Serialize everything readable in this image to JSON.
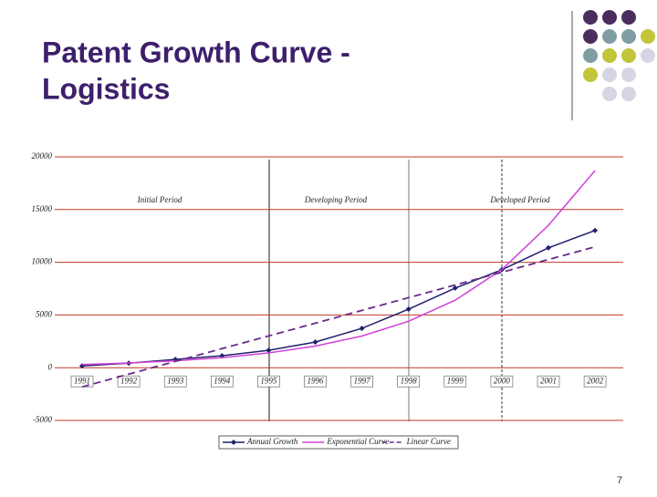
{
  "title_lines": [
    "Patent Growth Curve  -",
    "Logistics"
  ],
  "page_number": "7",
  "chart_data": {
    "type": "line",
    "categories": [
      "1991",
      "1992",
      "1993",
      "1994",
      "1995",
      "1996",
      "1997",
      "1998",
      "1999",
      "2000",
      "2001",
      "2002"
    ],
    "series": [
      {
        "name": "Annual Growth",
        "color": "#1f1f6e",
        "style": "solid",
        "marker": "diamond",
        "values": [
          170,
          430,
          780,
          1130,
          1650,
          2430,
          3730,
          5550,
          7550,
          9290,
          11370,
          13020
        ]
      },
      {
        "name": "Exponential Curve",
        "color": "#d040d8",
        "style": "solid",
        "values": [
          300,
          450,
          650,
          950,
          1400,
          2050,
          3000,
          4400,
          6400,
          9300,
          13500,
          18700
        ]
      },
      {
        "name": "Linear Curve",
        "color": "#6a2a8a",
        "style": "dashed",
        "values": [
          -1820,
          -610,
          600,
          1810,
          3010,
          4220,
          5430,
          6640,
          7850,
          9050,
          10260,
          11460
        ]
      }
    ],
    "annotations": [
      "Initial Period",
      "Developing Period",
      "Developed Period"
    ],
    "ylim": [
      -5000,
      20000
    ],
    "yticks": [
      -5000,
      0,
      5000,
      10000,
      15000,
      20000
    ],
    "grid": true,
    "grid_color": "#c0392b",
    "legend": "bottom"
  }
}
